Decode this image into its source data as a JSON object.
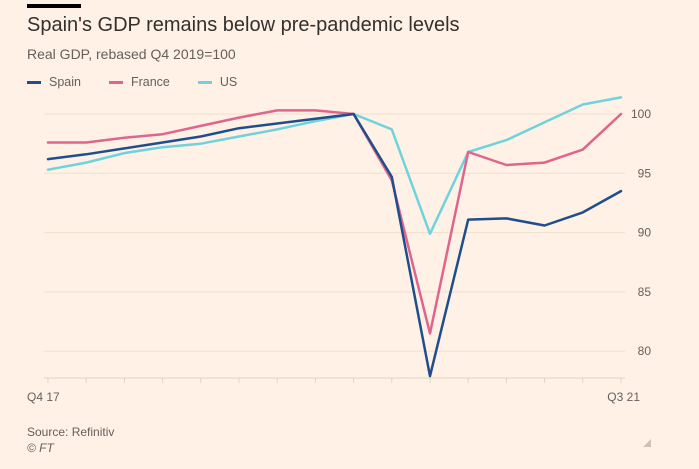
{
  "header": {
    "title": "Spain's GDP remains below pre-pandemic levels",
    "subtitle": "Real GDP, rebased Q4 2019=100"
  },
  "footer": {
    "source": "Source: Refinitiv",
    "copyright": "© FT"
  },
  "chart_data": {
    "type": "line",
    "title": "Spain's GDP remains below pre-pandemic levels",
    "subtitle": "Real GDP, rebased Q4 2019=100",
    "xlabel": "",
    "ylabel": "",
    "x": [
      "Q4 17",
      "Q1 18",
      "Q2 18",
      "Q3 18",
      "Q4 18",
      "Q1 19",
      "Q2 19",
      "Q3 19",
      "Q4 19",
      "Q1 20",
      "Q2 20",
      "Q3 20",
      "Q4 20",
      "Q1 21",
      "Q2 21",
      "Q3 21"
    ],
    "x_tick_labels": [
      {
        "index": 0,
        "label": "Q4 17"
      },
      {
        "index": 15,
        "label": "Q3 21"
      }
    ],
    "y_ticks": [
      100,
      95,
      90,
      85,
      80
    ],
    "ylim": [
      78,
      101.8
    ],
    "y_axis_side": "right",
    "grid": true,
    "legend_position": "top-left",
    "series": [
      {
        "name": "Spain",
        "color": "#1f4e8c",
        "values": [
          96.2,
          96.6,
          97.1,
          97.6,
          98.1,
          98.8,
          99.2,
          99.6,
          100.0,
          94.7,
          77.9,
          91.1,
          91.2,
          90.6,
          91.7,
          93.5
        ]
      },
      {
        "name": "France",
        "color": "#e0648c",
        "values": [
          97.6,
          97.6,
          98.0,
          98.3,
          99.0,
          99.7,
          100.3,
          100.3,
          100.0,
          94.4,
          81.5,
          96.8,
          95.7,
          95.9,
          97.0,
          100.0
        ]
      },
      {
        "name": "US",
        "color": "#6fd3dc",
        "values": [
          95.3,
          95.9,
          96.7,
          97.2,
          97.5,
          98.1,
          98.7,
          99.4,
          100.0,
          98.7,
          89.9,
          96.8,
          97.8,
          99.3,
          100.8,
          101.4
        ]
      }
    ]
  }
}
